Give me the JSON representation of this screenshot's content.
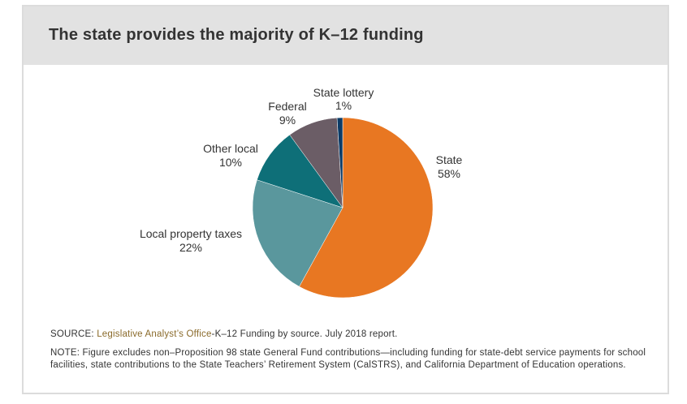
{
  "title": "The state provides the majority of K–12 funding",
  "chart_data": {
    "type": "pie",
    "title": "The state provides the majority of K–12 funding",
    "slices": [
      {
        "label": "State",
        "value": 58,
        "value_label": "58%",
        "color": "#e87722"
      },
      {
        "label": "Local property taxes",
        "value": 22,
        "value_label": "22%",
        "color": "#5a979d"
      },
      {
        "label": "Other local",
        "value": 10,
        "value_label": "10%",
        "color": "#0e6f78"
      },
      {
        "label": "Federal",
        "value": 9,
        "value_label": "9%",
        "color": "#6b5d66"
      },
      {
        "label": "State lottery",
        "value": 1,
        "value_label": "1%",
        "color": "#0b3b66"
      }
    ]
  },
  "source": {
    "prefix": "SOURCE: ",
    "link_text": "Legislative Analyst’s Office",
    "rest": "-K–12 Funding by source. July 2018 report."
  },
  "note": "NOTE: Figure excludes non–Proposition 98 state General Fund contributions—including funding for state-debt service payments for school facilities, state contributions to the State Teachers’ Retirement System (CalSTRS), and California Department of Education operations."
}
